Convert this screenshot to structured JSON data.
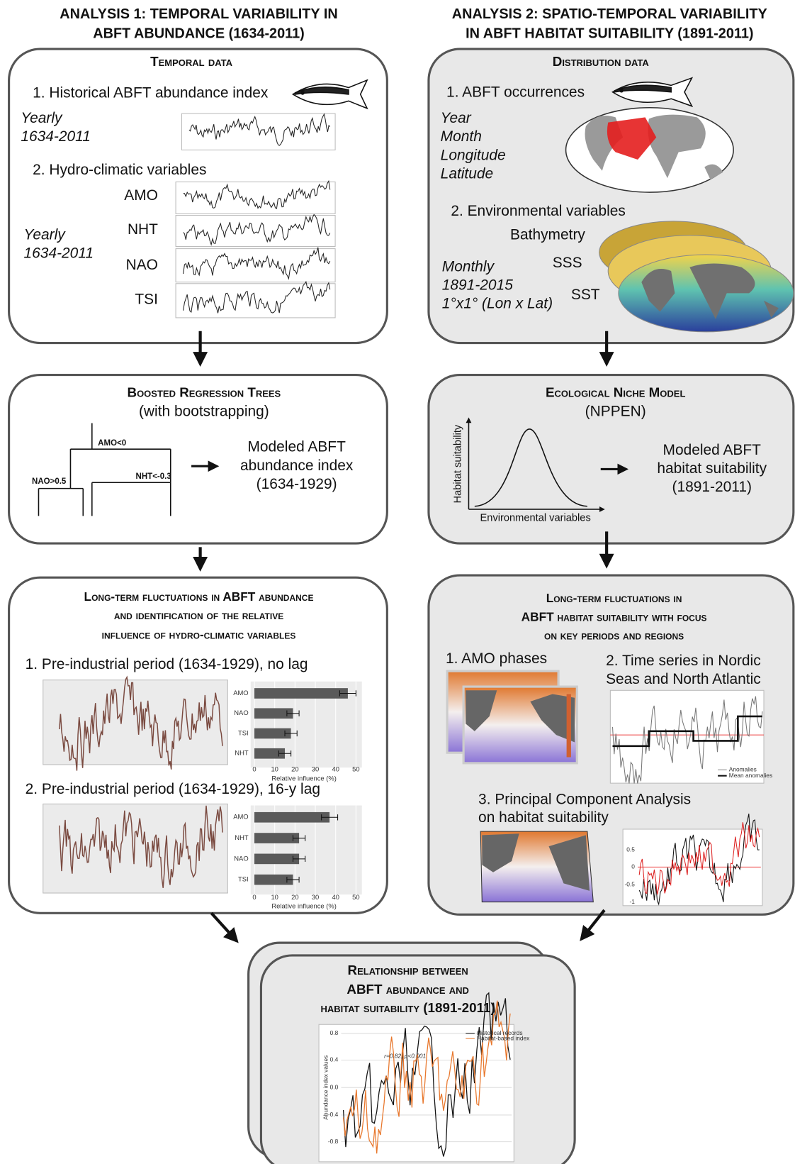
{
  "analysis1": {
    "title": [
      "ANALYSIS 1: TEMPORAL VARIABILITY IN",
      "ABFT ABUNDANCE (1634-2011)"
    ],
    "temporal_data": {
      "heading": "Temporal data",
      "item1": "1. Historical ABFT abundance index",
      "period1": [
        "Yearly",
        "1634-2011"
      ],
      "item2": "2. Hydro-climatic variables",
      "variables": [
        "AMO",
        "NHT",
        "NAO",
        "TSI"
      ],
      "period2": [
        "Yearly",
        "1634-2011"
      ]
    },
    "brt": {
      "heading": "Boosted Regression Trees",
      "subheading": "(with bootstrapping)",
      "splits": [
        "AMO<0",
        "NAO>0.5",
        "NHT<-0.3"
      ],
      "output": [
        "Modeled ABFT",
        "abundance index",
        "(1634-1929)"
      ]
    },
    "fluctuations": {
      "heading": [
        "Long-term fluctuations in ABFT abundance",
        "and identification of the relative",
        "influence of hydro-climatic variables"
      ],
      "panel1": {
        "title": "1. Pre-industrial period (1634-1929), no lag",
        "bars": {
          "categories": [
            "AMO",
            "NAO",
            "TSI",
            "NHT"
          ],
          "values": [
            46,
            19,
            18,
            15
          ],
          "errors": [
            4,
            3,
            3,
            3
          ]
        },
        "xticks": [
          0,
          10,
          20,
          30,
          40,
          50
        ],
        "xlabel": "Relative influence (%)"
      },
      "panel2": {
        "title": "2. Pre-industrial period (1634-1929), 16-y lag",
        "bars": {
          "categories": [
            "AMO",
            "NHT",
            "NAO",
            "TSI"
          ],
          "values": [
            37,
            22,
            22,
            19
          ],
          "errors": [
            4,
            3,
            3,
            3
          ]
        },
        "xticks": [
          0,
          10,
          20,
          30,
          40,
          50
        ],
        "xlabel": "Relative influence (%)"
      }
    }
  },
  "analysis2": {
    "title": [
      "ANALYSIS 2: SPATIO-TEMPORAL VARIABILITY",
      "IN ABFT HABITAT SUITABILITY (1891-2011)"
    ],
    "distribution": {
      "heading": "Distribution data",
      "item1": "1. ABFT occurrences",
      "fields": [
        "Year",
        "Month",
        "Longitude",
        "Latitude"
      ],
      "item2": "2. Environmental variables",
      "variables": [
        "Bathymetry",
        "SSS",
        "SST"
      ],
      "resolution": [
        "Monthly",
        "1891-2015",
        "1°x1° (Lon x Lat)"
      ]
    },
    "enm": {
      "heading": "Ecological Niche Model",
      "subheading": "(NPPEN)",
      "yaxis": "Habitat suitability",
      "xaxis": "Environmental variables",
      "output": [
        "Modeled ABFT",
        "habitat suitability",
        "(1891-2011)"
      ]
    },
    "fluctuations": {
      "heading": [
        "Long-term fluctuations in",
        "ABFT habitat suitability with focus",
        "on key periods and regions"
      ],
      "item1": "1. AMO phases",
      "item2": [
        "2. Time series in Nordic",
        "Seas and North Atlantic"
      ],
      "legend": [
        "Anomalies",
        "Mean anomalies"
      ],
      "item3": [
        "3. Principal Component Analysis",
        "on habitat suitability"
      ],
      "pc_ticks": [
        "0.5",
        "0",
        "-0.5",
        "-1"
      ]
    }
  },
  "relationship": {
    "heading": [
      "Relationship between",
      "ABFT abundance and",
      "habitat suitability (1891-2011)"
    ],
    "legend": [
      "Historical records",
      "Habitat-based index"
    ],
    "annotation": "r=0.82, p<0.001",
    "ylabel": "Abundance index values",
    "yticks": [
      "0.8",
      "0.4",
      "0.0",
      "-0.4",
      "-0.8"
    ]
  }
}
